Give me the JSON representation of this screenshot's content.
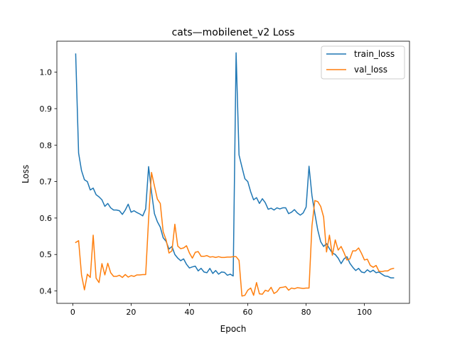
{
  "chart_data": {
    "type": "line",
    "title": "cats—mobilenet_v2 Loss",
    "xlabel": "Epoch",
    "ylabel": "Loss",
    "xlim": [
      -5.45,
      115.45
    ],
    "ylim": [
      0.366,
      1.085
    ],
    "xticks": [
      0,
      20,
      40,
      60,
      80,
      100
    ],
    "yticks": [
      0.4,
      0.5,
      0.6,
      0.7,
      0.8,
      0.9,
      1.0
    ],
    "xtick_labels": [
      "0",
      "20",
      "40",
      "60",
      "80",
      "100"
    ],
    "ytick_labels": [
      "0.4",
      "0.5",
      "0.6",
      "0.7",
      "0.8",
      "0.9",
      "1.0"
    ],
    "grid": false,
    "legend_position": "top-right",
    "series": [
      {
        "name": "train_loss",
        "color": "#1f77b4",
        "x": [
          1,
          2,
          3,
          4,
          5,
          6,
          7,
          8,
          9,
          10,
          11,
          12,
          13,
          14,
          15,
          16,
          17,
          18,
          19,
          20,
          21,
          22,
          23,
          24,
          25,
          26,
          27,
          28,
          29,
          30,
          31,
          32,
          33,
          34,
          35,
          36,
          37,
          38,
          39,
          40,
          41,
          42,
          43,
          44,
          45,
          46,
          47,
          48,
          49,
          50,
          51,
          52,
          53,
          54,
          55,
          56,
          57,
          58,
          59,
          60,
          61,
          62,
          63,
          64,
          65,
          66,
          67,
          68,
          69,
          70,
          71,
          72,
          73,
          74,
          75,
          76,
          77,
          78,
          79,
          80,
          81,
          82,
          83,
          84,
          85,
          86,
          87,
          88,
          89,
          90,
          91,
          92,
          93,
          94,
          95,
          96,
          97,
          98,
          99,
          100,
          101,
          102,
          103,
          104,
          105,
          106,
          107,
          108,
          109,
          110
        ],
        "values": [
          1.05,
          0.778,
          0.73,
          0.705,
          0.7,
          0.677,
          0.682,
          0.664,
          0.658,
          0.65,
          0.632,
          0.64,
          0.628,
          0.622,
          0.622,
          0.62,
          0.61,
          0.622,
          0.638,
          0.616,
          0.62,
          0.615,
          0.611,
          0.606,
          0.625,
          0.741,
          0.671,
          0.612,
          0.59,
          0.575,
          0.546,
          0.536,
          0.515,
          0.522,
          0.5,
          0.49,
          0.483,
          0.488,
          0.473,
          0.463,
          0.466,
          0.468,
          0.455,
          0.462,
          0.452,
          0.45,
          0.462,
          0.448,
          0.456,
          0.446,
          0.452,
          0.451,
          0.443,
          0.446,
          0.441,
          1.053,
          0.773,
          0.74,
          0.708,
          0.7,
          0.672,
          0.65,
          0.656,
          0.64,
          0.653,
          0.642,
          0.624,
          0.627,
          0.622,
          0.628,
          0.625,
          0.628,
          0.628,
          0.612,
          0.616,
          0.623,
          0.614,
          0.608,
          0.614,
          0.63,
          0.742,
          0.662,
          0.612,
          0.567,
          0.535,
          0.522,
          0.53,
          0.516,
          0.504,
          0.5,
          0.49,
          0.475,
          0.488,
          0.494,
          0.476,
          0.465,
          0.456,
          0.462,
          0.452,
          0.45,
          0.458,
          0.452,
          0.457,
          0.45,
          0.452,
          0.446,
          0.441,
          0.44,
          0.436,
          0.436
        ]
      },
      {
        "name": "val_loss",
        "color": "#ff7f0e",
        "x": [
          1,
          2,
          3,
          4,
          5,
          6,
          7,
          8,
          9,
          10,
          11,
          12,
          13,
          14,
          15,
          16,
          17,
          18,
          19,
          20,
          21,
          22,
          23,
          24,
          25,
          26,
          27,
          28,
          29,
          30,
          31,
          32,
          33,
          34,
          35,
          36,
          37,
          38,
          39,
          40,
          41,
          42,
          43,
          44,
          45,
          46,
          47,
          48,
          49,
          50,
          51,
          52,
          53,
          54,
          55,
          56,
          57,
          58,
          59,
          60,
          61,
          62,
          63,
          64,
          65,
          66,
          67,
          68,
          69,
          70,
          71,
          72,
          73,
          74,
          75,
          76,
          77,
          78,
          79,
          80,
          81,
          82,
          83,
          84,
          85,
          86,
          87,
          88,
          89,
          90,
          91,
          92,
          93,
          94,
          95,
          96,
          97,
          98,
          99,
          100,
          101,
          102,
          103,
          104,
          105,
          106,
          107,
          108,
          109,
          110
        ],
        "values": [
          0.533,
          0.538,
          0.444,
          0.403,
          0.446,
          0.437,
          0.553,
          0.435,
          0.423,
          0.475,
          0.444,
          0.476,
          0.45,
          0.44,
          0.44,
          0.443,
          0.437,
          0.445,
          0.438,
          0.442,
          0.44,
          0.444,
          0.444,
          0.445,
          0.445,
          0.598,
          0.725,
          0.688,
          0.652,
          0.64,
          0.562,
          0.54,
          0.504,
          0.51,
          0.583,
          0.523,
          0.516,
          0.518,
          0.524,
          0.504,
          0.49,
          0.506,
          0.508,
          0.495,
          0.495,
          0.497,
          0.493,
          0.494,
          0.492,
          0.494,
          0.492,
          0.492,
          0.493,
          0.493,
          0.494,
          0.494,
          0.484,
          0.386,
          0.388,
          0.402,
          0.408,
          0.388,
          0.423,
          0.392,
          0.391,
          0.402,
          0.399,
          0.41,
          0.393,
          0.398,
          0.409,
          0.41,
          0.412,
          0.402,
          0.408,
          0.406,
          0.409,
          0.408,
          0.407,
          0.408,
          0.408,
          0.578,
          0.648,
          0.645,
          0.632,
          0.603,
          0.507,
          0.553,
          0.498,
          0.54,
          0.512,
          0.522,
          0.505,
          0.485,
          0.488,
          0.51,
          0.51,
          0.518,
          0.503,
          0.485,
          0.487,
          0.47,
          0.465,
          0.47,
          0.454,
          0.453,
          0.455,
          0.455,
          0.46,
          0.462
        ]
      }
    ]
  }
}
